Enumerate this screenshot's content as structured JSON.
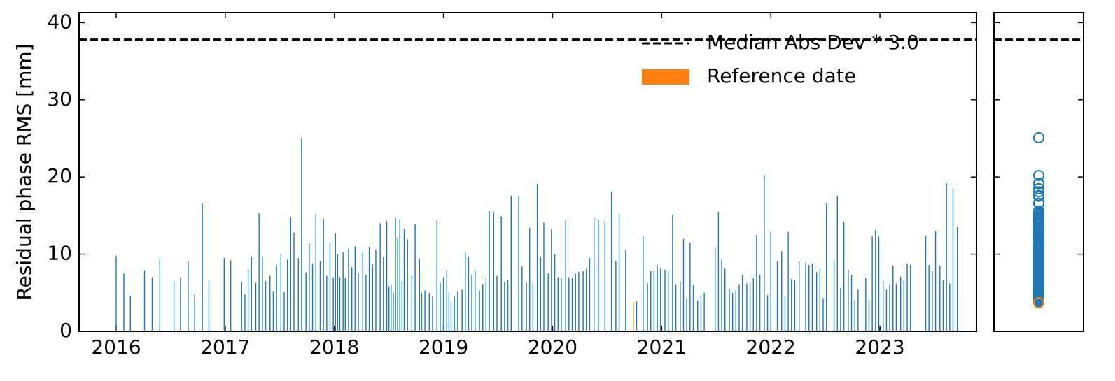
{
  "chart_data": {
    "type": "bar",
    "ylabel": "Residual phase RMS [mm]",
    "color": "#1f77b4",
    "x": [
      2016.0,
      2016.07,
      2016.13,
      2016.26,
      2016.33,
      2016.4,
      2016.53,
      2016.59,
      2016.66,
      2016.72,
      2016.79,
      2016.85,
      2016.99,
      2017.05,
      2017.15,
      2017.18,
      2017.21,
      2017.24,
      2017.28,
      2017.31,
      2017.34,
      2017.37,
      2017.41,
      2017.44,
      2017.47,
      2017.51,
      2017.54,
      2017.57,
      2017.6,
      2017.63,
      2017.67,
      2017.7,
      2017.74,
      2017.77,
      2017.8,
      2017.83,
      2017.87,
      2017.9,
      2017.93,
      2017.96,
      2017.99,
      2018.01,
      2018.03,
      2018.05,
      2018.08,
      2018.1,
      2018.13,
      2018.16,
      2018.19,
      2018.22,
      2018.26,
      2018.29,
      2018.32,
      2018.35,
      2018.38,
      2018.42,
      2018.45,
      2018.48,
      2018.5,
      2018.52,
      2018.54,
      2018.56,
      2018.58,
      2018.6,
      2018.62,
      2018.64,
      2018.67,
      2018.71,
      2018.74,
      2018.78,
      2018.8,
      2018.83,
      2018.87,
      2018.9,
      2018.94,
      2018.97,
      2019.0,
      2019.03,
      2019.05,
      2019.07,
      2019.1,
      2019.13,
      2019.17,
      2019.2,
      2019.23,
      2019.26,
      2019.29,
      2019.33,
      2019.36,
      2019.39,
      2019.42,
      2019.46,
      2019.49,
      2019.53,
      2019.56,
      2019.59,
      2019.62,
      2019.69,
      2019.72,
      2019.76,
      2019.79,
      2019.82,
      2019.86,
      2019.89,
      2019.92,
      2019.96,
      2019.99,
      2020.02,
      2020.05,
      2020.08,
      2020.12,
      2020.15,
      2020.18,
      2020.21,
      2020.24,
      2020.28,
      2020.31,
      2020.34,
      2020.38,
      2020.42,
      2020.48,
      2020.54,
      2020.58,
      2020.61,
      2020.67,
      2020.77,
      2020.83,
      2020.87,
      2020.9,
      2020.93,
      2020.96,
      2020.99,
      2021.03,
      2021.06,
      2021.1,
      2021.13,
      2021.17,
      2021.2,
      2021.23,
      2021.26,
      2021.29,
      2021.33,
      2021.36,
      2021.39,
      2021.49,
      2021.52,
      2021.55,
      2021.58,
      2021.62,
      2021.65,
      2021.68,
      2021.71,
      2021.74,
      2021.78,
      2021.81,
      2021.84,
      2021.87,
      2021.9,
      2021.94,
      2021.97,
      2022.0,
      2022.06,
      2022.1,
      2022.13,
      2022.16,
      2022.19,
      2022.22,
      2022.26,
      2022.32,
      2022.35,
      2022.38,
      2022.42,
      2022.45,
      2022.48,
      2022.51,
      2022.58,
      2022.61,
      2022.64,
      2022.67,
      2022.71,
      2022.74,
      2022.77,
      2022.8,
      2022.87,
      2022.9,
      2022.93,
      2022.96,
      2022.99,
      2023.03,
      2023.06,
      2023.09,
      2023.12,
      2023.15,
      2023.19,
      2023.22,
      2023.25,
      2023.28,
      2023.42,
      2023.45,
      2023.48,
      2023.51,
      2023.55,
      2023.58,
      2023.61,
      2023.64,
      2023.67,
      2023.71
    ],
    "values": [
      9.8,
      7.5,
      4.6,
      7.9,
      7.0,
      9.3,
      6.5,
      7.0,
      9.1,
      4.8,
      16.6,
      6.5,
      9.5,
      9.2,
      6.4,
      4.8,
      8.0,
      9.7,
      6.3,
      15.3,
      9.7,
      6.5,
      7.2,
      5.2,
      8.6,
      10.0,
      5.1,
      9.3,
      14.8,
      12.8,
      9.5,
      25.1,
      7.6,
      11.4,
      8.8,
      15.2,
      9.1,
      14.6,
      7.2,
      11.5,
      7.0,
      12.7,
      10.0,
      7.0,
      10.3,
      6.9,
      10.7,
      8.3,
      11.0,
      7.5,
      10.3,
      7.3,
      10.9,
      8.7,
      10.6,
      14.0,
      9.6,
      14.3,
      5.8,
      6.0,
      5.0,
      14.7,
      12.1,
      14.5,
      6.4,
      13.3,
      11.9,
      7.2,
      13.9,
      9.4,
      5.0,
      5.3,
      5.0,
      4.6,
      14.4,
      6.3,
      7.0,
      7.9,
      5.0,
      3.8,
      4.5,
      5.2,
      5.4,
      10.2,
      9.7,
      7.3,
      7.8,
      5.3,
      6.1,
      6.9,
      15.6,
      15.5,
      7.2,
      14.9,
      6.4,
      6.7,
      17.6,
      17.5,
      8.4,
      6.3,
      13.4,
      6.3,
      19.1,
      9.7,
      14.1,
      7.5,
      13.2,
      10.0,
      7.0,
      6.9,
      14.4,
      7.0,
      6.9,
      7.5,
      7.7,
      7.8,
      8.1,
      9.5,
      14.7,
      14.4,
      14.3,
      18.1,
      9.1,
      15.2,
      10.6,
      3.9,
      12.4,
      6.2,
      7.8,
      7.9,
      8.6,
      8.1,
      8.0,
      7.8,
      15.1,
      6.1,
      6.5,
      12.0,
      4.3,
      11.5,
      6.0,
      4.0,
      4.7,
      5.0,
      10.8,
      15.5,
      9.3,
      8.1,
      5.5,
      5.0,
      5.3,
      6.1,
      7.3,
      6.2,
      6.3,
      6.9,
      12.5,
      7.3,
      20.2,
      4.7,
      12.9,
      9.1,
      10.4,
      4.6,
      12.9,
      6.8,
      6.6,
      9.0,
      8.9,
      8.6,
      8.8,
      7.7,
      8.1,
      4.3,
      16.6,
      9.2,
      17.6,
      5.6,
      14.2,
      8.0,
      7.3,
      4.1,
      5.4,
      6.9,
      4.1,
      12.3,
      13.1,
      12.3,
      6.5,
      5.4,
      6.1,
      8.5,
      6.2,
      7.1,
      6.6,
      8.8,
      8.6,
      12.4,
      8.6,
      7.8,
      13.0,
      8.5,
      6.6,
      19.2,
      6.2,
      18.5,
      13.5
    ],
    "reference": {
      "name": "Reference date",
      "x": 2020.74,
      "value": 3.7,
      "color": "#ff7f0e"
    },
    "threshold": {
      "name": "Median Abs Dev * 3.0",
      "value": 37.8,
      "color": "#000000"
    },
    "xlim": [
      2015.66,
      2023.885
    ],
    "ylim": [
      0,
      41.3
    ],
    "xticks": [
      2016,
      2017,
      2018,
      2019,
      2020,
      2021,
      2022,
      2023
    ],
    "yticks": [
      0,
      10,
      20,
      30,
      40
    ],
    "legend": "upper right"
  }
}
